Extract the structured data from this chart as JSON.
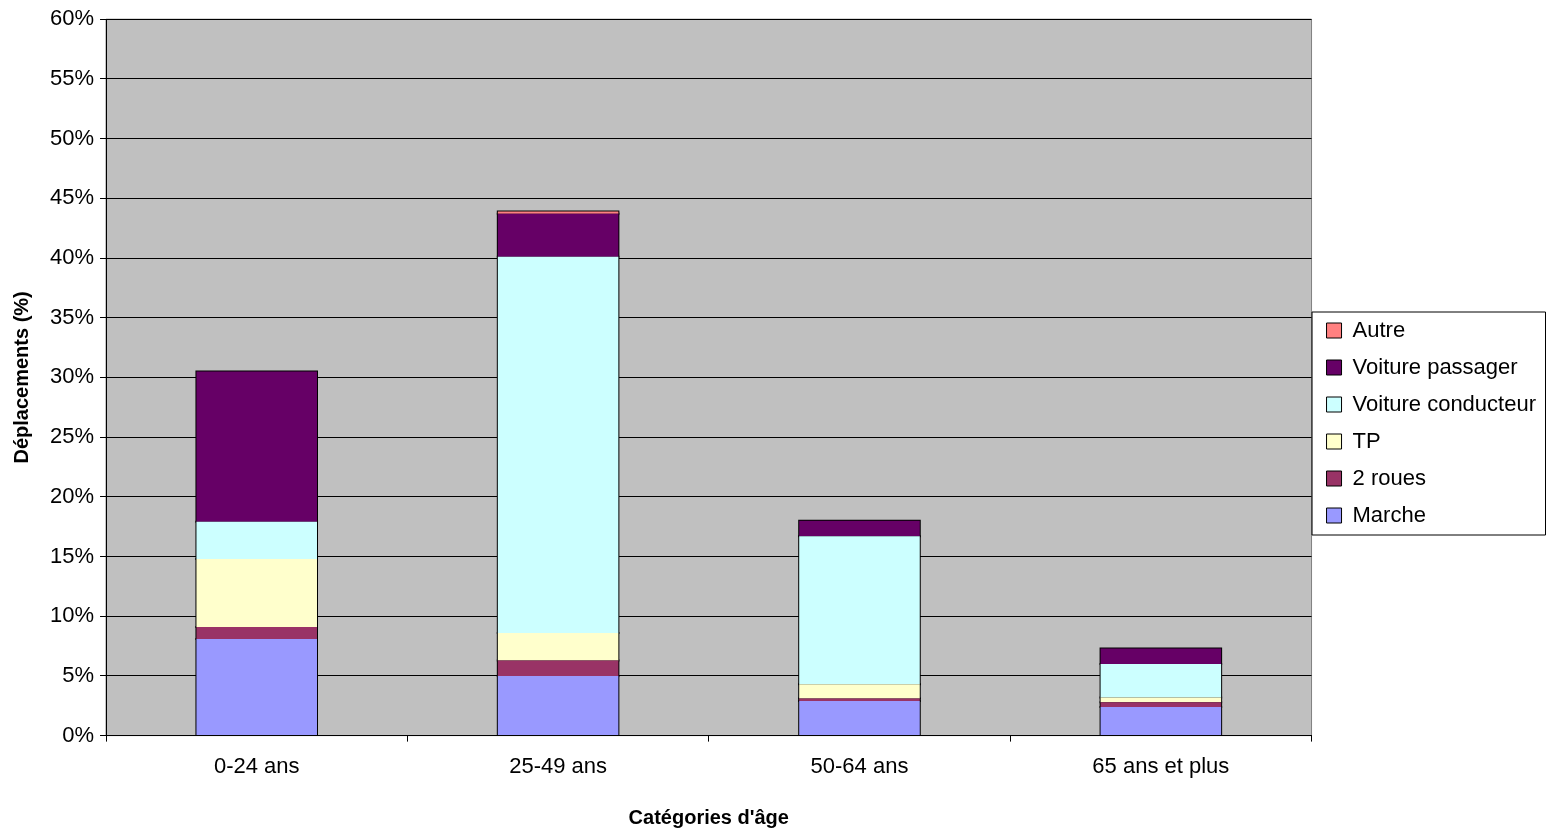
{
  "chart_data": {
    "type": "bar",
    "stacked": true,
    "xlabel": "Catégories d'âge",
    "ylabel": "Déplacements (%)",
    "categories": [
      "0-24 ans",
      "25-49 ans",
      "50-64 ans",
      "65 ans et plus"
    ],
    "series": [
      {
        "name": "Marche",
        "color": "#9999ff",
        "values": [
          8.1,
          5.0,
          2.9,
          2.4
        ]
      },
      {
        "name": "2 roues",
        "color": "#993366",
        "values": [
          1.0,
          1.3,
          0.2,
          0.4
        ]
      },
      {
        "name": "TP",
        "color": "#ffffcc",
        "values": [
          5.7,
          2.3,
          1.2,
          0.4
        ]
      },
      {
        "name": "Voiture conducteur",
        "color": "#ccffff",
        "values": [
          3.1,
          31.5,
          12.4,
          2.8
        ]
      },
      {
        "name": "Voiture passager",
        "color": "#660066",
        "values": [
          12.6,
          3.6,
          1.3,
          1.3
        ]
      },
      {
        "name": "Autre",
        "color": "#ff8080",
        "values": [
          null,
          0.2,
          null,
          0
        ]
      }
    ],
    "ylim": [
      0,
      60
    ],
    "yticks": [
      {
        "value": 0,
        "label": "0%"
      },
      {
        "value": 5,
        "label": "5%"
      },
      {
        "value": 10,
        "label": "10%"
      },
      {
        "value": 15,
        "label": "15%"
      },
      {
        "value": 20,
        "label": "20%"
      },
      {
        "value": 25,
        "label": "25%"
      },
      {
        "value": 30,
        "label": "30%"
      },
      {
        "value": 35,
        "label": "35%"
      },
      {
        "value": 40,
        "label": "40%"
      },
      {
        "value": 45,
        "label": "45%"
      },
      {
        "value": 50,
        "label": "50%"
      },
      {
        "value": 55,
        "label": "55%"
      },
      {
        "value": 60,
        "label": "60%"
      }
    ],
    "grid": "y",
    "legend": "right"
  }
}
